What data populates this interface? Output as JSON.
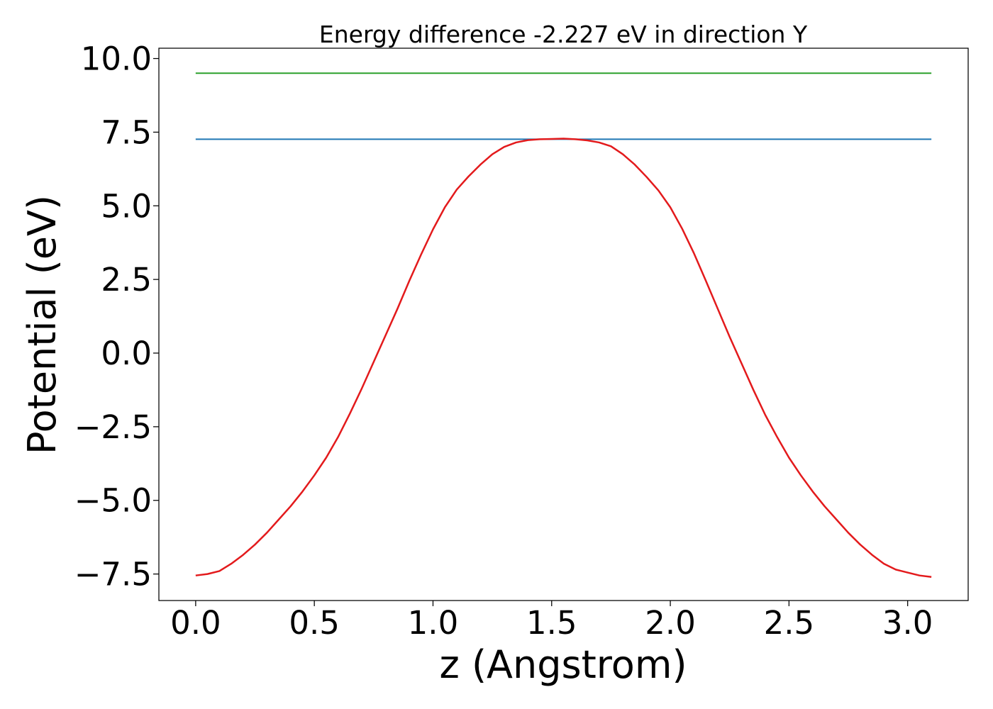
{
  "chart_data": {
    "type": "line",
    "title": "Energy difference -2.227 eV in direction Y",
    "xlabel": "z (Angstrom)",
    "ylabel": "Potential (eV)",
    "xlim": [
      -0.155,
      3.255
    ],
    "ylim": [
      -8.4,
      10.35
    ],
    "x_ticks": [
      0.0,
      0.5,
      1.0,
      1.5,
      2.0,
      2.5,
      3.0
    ],
    "x_tick_labels": [
      "0.0",
      "0.5",
      "1.0",
      "1.5",
      "2.0",
      "2.5",
      "3.0"
    ],
    "y_ticks": [
      10.0,
      7.5,
      5.0,
      2.5,
      0.0,
      -2.5,
      -5.0,
      -7.5
    ],
    "y_tick_labels": [
      "10.0",
      "7.5",
      "5.0",
      "2.5",
      "0.0",
      "−2.5",
      "−5.0",
      "−7.5"
    ],
    "grid": false,
    "series": [
      {
        "color": "#2ca02c",
        "x": [
          0.0,
          3.1
        ],
        "y": [
          9.5,
          9.5
        ]
      },
      {
        "color": "#1f77b4",
        "x": [
          0.0,
          3.1
        ],
        "y": [
          7.26,
          7.26
        ]
      },
      {
        "color": "#e31a1c",
        "x": [
          0.0,
          0.05,
          0.1,
          0.15,
          0.2,
          0.25,
          0.3,
          0.35,
          0.4,
          0.45,
          0.5,
          0.55,
          0.6,
          0.65,
          0.7,
          0.75,
          0.8,
          0.85,
          0.9,
          0.95,
          1.0,
          1.05,
          1.1,
          1.15,
          1.2,
          1.25,
          1.3,
          1.35,
          1.4,
          1.45,
          1.5,
          1.55,
          1.6,
          1.65,
          1.7,
          1.75,
          1.8,
          1.85,
          1.9,
          1.95,
          2.0,
          2.05,
          2.1,
          2.15,
          2.2,
          2.25,
          2.3,
          2.35,
          2.4,
          2.45,
          2.5,
          2.55,
          2.6,
          2.65,
          2.7,
          2.75,
          2.8,
          2.85,
          2.9,
          2.95,
          3.0,
          3.05,
          3.1
        ],
        "y": [
          -7.55,
          -7.5,
          -7.4,
          -7.15,
          -6.85,
          -6.5,
          -6.1,
          -5.65,
          -5.2,
          -4.7,
          -4.15,
          -3.55,
          -2.85,
          -2.05,
          -1.2,
          -0.3,
          0.6,
          1.5,
          2.45,
          3.35,
          4.2,
          4.95,
          5.55,
          6.0,
          6.4,
          6.75,
          7.0,
          7.15,
          7.23,
          7.26,
          7.27,
          7.28,
          7.26,
          7.22,
          7.15,
          7.02,
          6.75,
          6.4,
          5.98,
          5.52,
          4.95,
          4.22,
          3.38,
          2.45,
          1.5,
          0.55,
          -0.35,
          -1.25,
          -2.1,
          -2.85,
          -3.55,
          -4.15,
          -4.7,
          -5.2,
          -5.65,
          -6.1,
          -6.5,
          -6.85,
          -7.15,
          -7.35,
          -7.45,
          -7.55,
          -7.6
        ]
      }
    ]
  }
}
